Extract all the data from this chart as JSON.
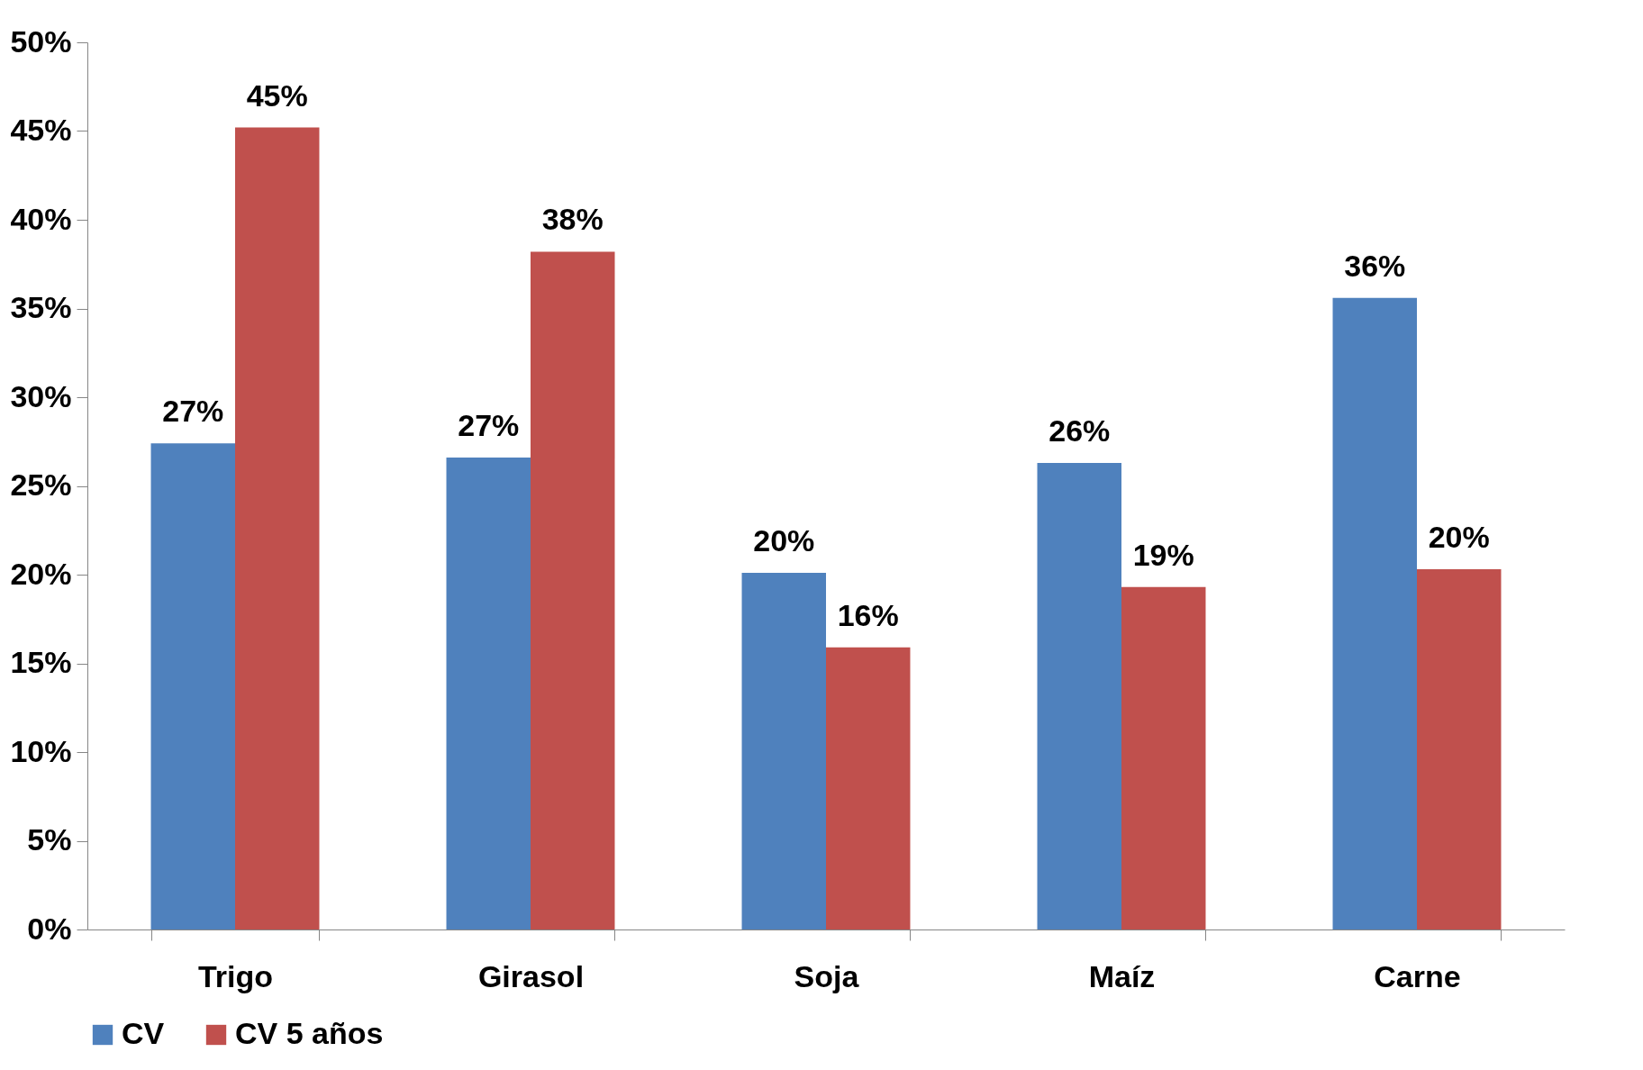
{
  "chart_data": {
    "type": "bar",
    "categories": [
      "Trigo",
      "Girasol",
      "Soja",
      "Maíz",
      "Carne"
    ],
    "series": [
      {
        "name": "CV",
        "color": "#4f81bd",
        "values": [
          27.4,
          26.6,
          20.1,
          26.3,
          35.6
        ],
        "value_labels": [
          "27%",
          "27%",
          "20%",
          "26%",
          "36%"
        ]
      },
      {
        "name": "CV 5 años",
        "color": "#c0504d",
        "values": [
          45.2,
          38.2,
          15.9,
          19.3,
          20.3
        ],
        "value_labels": [
          "45%",
          "38%",
          "16%",
          "19%",
          "20%"
        ]
      }
    ],
    "ylim": [
      0,
      50
    ],
    "yticks": [
      {
        "value": 0,
        "label": "0%"
      },
      {
        "value": 5,
        "label": "5%"
      },
      {
        "value": 10,
        "label": "10%"
      },
      {
        "value": 15,
        "label": "15%"
      },
      {
        "value": 20,
        "label": "20%"
      },
      {
        "value": 25,
        "label": "25%"
      },
      {
        "value": 30,
        "label": "30%"
      },
      {
        "value": 35,
        "label": "35%"
      },
      {
        "value": 40,
        "label": "40%"
      },
      {
        "value": 45,
        "label": "45%"
      },
      {
        "value": 50,
        "label": "50%"
      }
    ],
    "legend": "bottom"
  }
}
